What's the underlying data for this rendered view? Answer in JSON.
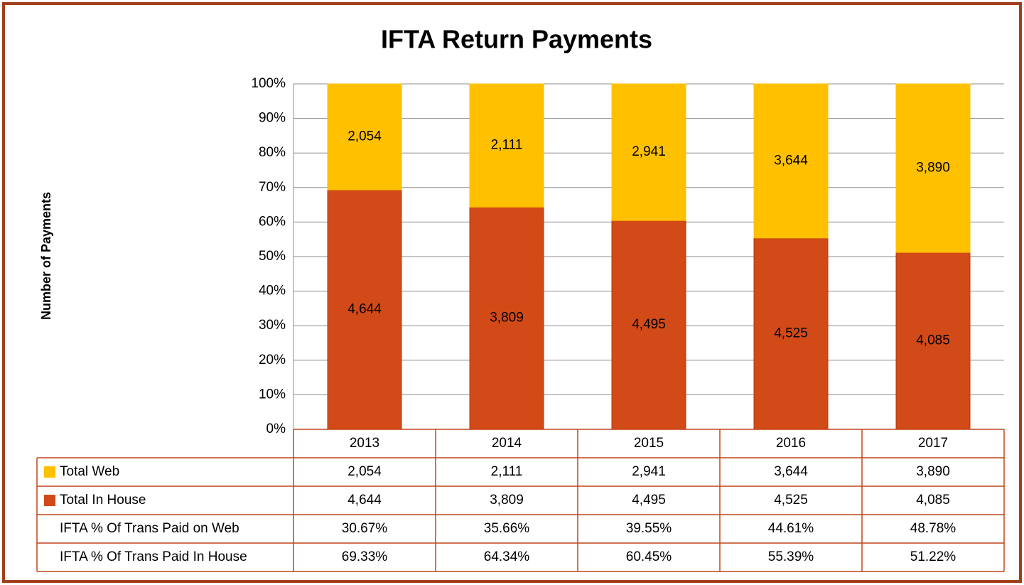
{
  "chart_data": {
    "type": "bar",
    "stacking": "percent",
    "title": "IFTA Return Payments",
    "y_label": "Number of Payments",
    "categories": [
      "2013",
      "2014",
      "2015",
      "2016",
      "2017"
    ],
    "ylim": [
      0,
      100
    ],
    "yticks": [
      {
        "value": 0,
        "label": "0%"
      },
      {
        "value": 10,
        "label": "10%"
      },
      {
        "value": 20,
        "label": "20%"
      },
      {
        "value": 30,
        "label": "30%"
      },
      {
        "value": 40,
        "label": "40%"
      },
      {
        "value": 50,
        "label": "50%"
      },
      {
        "value": 60,
        "label": "60%"
      },
      {
        "value": 70,
        "label": "70%"
      },
      {
        "value": 80,
        "label": "80%"
      },
      {
        "value": 90,
        "label": "90%"
      },
      {
        "value": 100,
        "label": "100%"
      }
    ],
    "grid": true,
    "series": [
      {
        "name": "Total Web",
        "color": "#FFC000",
        "values": [
          2054,
          2111,
          2941,
          3644,
          3890
        ],
        "value_labels": [
          "2,054",
          "2,111",
          "2,941",
          "3,644",
          "3,890"
        ]
      },
      {
        "name": "Total In House",
        "color": "#D24A17",
        "values": [
          4644,
          3809,
          4495,
          4525,
          4085
        ],
        "value_labels": [
          "4,644",
          "3,809",
          "4,495",
          "4,525",
          "4,085"
        ]
      }
    ],
    "share_rows": [
      {
        "name": "IFTA % Of Trans Paid on Web",
        "values": [
          30.67,
          35.66,
          39.55,
          44.61,
          48.78
        ],
        "value_labels": [
          "30.67%",
          "35.66%",
          "39.55%",
          "44.61%",
          "48.78%"
        ]
      },
      {
        "name": "IFTA % Of Trans Paid In House",
        "values": [
          69.33,
          64.34,
          60.45,
          55.39,
          51.22
        ],
        "value_labels": [
          "69.33%",
          "64.34%",
          "60.45%",
          "55.39%",
          "51.22%"
        ]
      }
    ]
  }
}
